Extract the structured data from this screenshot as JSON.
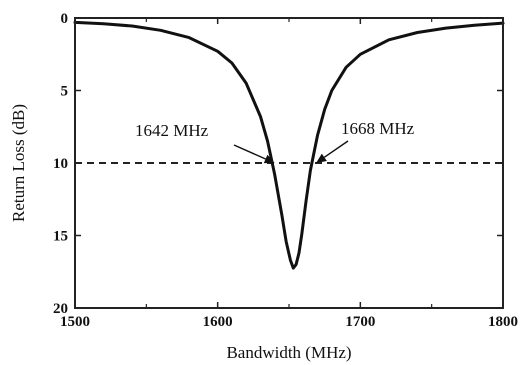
{
  "chart_data": {
    "type": "line",
    "title": "",
    "xlabel": "Bandwidth (MHz)",
    "ylabel": "Return Loss (dB)",
    "xlim": [
      1500,
      1800
    ],
    "ylim": [
      0,
      20
    ],
    "y_inverted": true,
    "x_ticks": [
      1500,
      1600,
      1700,
      1800
    ],
    "y_ticks": [
      0,
      5,
      10,
      15,
      20
    ],
    "x_tick_labels": [
      "1500",
      "1600",
      "1700",
      "1800"
    ],
    "y_tick_labels": [
      "0",
      "5",
      "10",
      "15",
      "20"
    ],
    "grid": false,
    "series": [
      {
        "color": "#111111",
        "x": [
          1500,
          1520,
          1540,
          1560,
          1580,
          1600,
          1610,
          1620,
          1630,
          1635,
          1640,
          1645,
          1648,
          1651,
          1653,
          1655,
          1657,
          1659,
          1662,
          1665,
          1670,
          1675,
          1680,
          1690,
          1700,
          1720,
          1740,
          1760,
          1780,
          1800
        ],
        "y": [
          0.3,
          0.4,
          0.55,
          0.85,
          1.35,
          2.3,
          3.1,
          4.5,
          6.8,
          8.5,
          10.8,
          13.6,
          15.4,
          16.7,
          17.25,
          17.0,
          16.2,
          14.9,
          12.6,
          10.5,
          8.1,
          6.3,
          5.0,
          3.4,
          2.5,
          1.5,
          1.0,
          0.7,
          0.5,
          0.35
        ]
      }
    ],
    "reference_lines": [
      {
        "axis": "y",
        "value": 10,
        "style": "dashed"
      }
    ],
    "annotations": [
      {
        "text": "1642 MHz",
        "x": 1641,
        "y": 10
      },
      {
        "text": "1668 MHz",
        "x": 1668,
        "y": 10
      }
    ]
  }
}
